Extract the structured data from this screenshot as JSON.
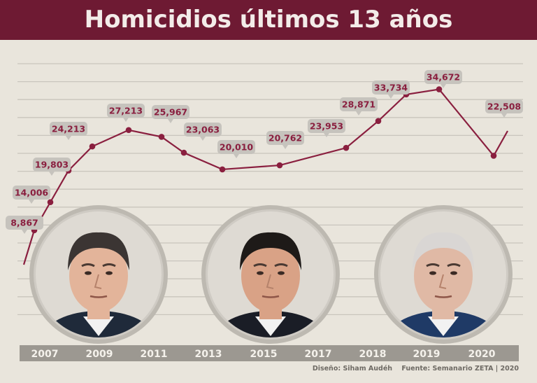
{
  "title": "Homicidios últimos 13 años",
  "credits": {
    "design": "Diseño: Siham Audéh",
    "source": "Fuente: Semanario ZETA |  2020"
  },
  "colors": {
    "title_bg": "#6e1a33",
    "line": "#8a1f3f",
    "label_bg": "#c6c3bd",
    "axis_bar": "#9c9891",
    "background": "#e9e5dc"
  },
  "portraits": [
    {
      "name": "portrait-left"
    },
    {
      "name": "portrait-center"
    },
    {
      "name": "portrait-right"
    }
  ],
  "chart_data": {
    "type": "line",
    "title": "Homicidios últimos 13 años",
    "x_tick_labels": [
      "2007",
      "2009",
      "2011",
      "2013",
      "2015",
      "2017",
      "2018",
      "2019",
      "2020"
    ],
    "points": [
      {
        "label": "8,867",
        "value": 8867
      },
      {
        "label": "14,006",
        "value": 14006
      },
      {
        "label": "19,803",
        "value": 19803
      },
      {
        "label": "24,213",
        "value": 24213
      },
      {
        "label": "27,213",
        "value": 27213
      },
      {
        "label": "25,967",
        "value": 25967
      },
      {
        "label": "23,063",
        "value": 23063
      },
      {
        "label": "20,010",
        "value": 20010
      },
      {
        "label": "20,762",
        "value": 20762
      },
      {
        "label": "23,953",
        "value": 23953
      },
      {
        "label": "28,871",
        "value": 28871
      },
      {
        "label": "33,734",
        "value": 33734
      },
      {
        "label": "34,672",
        "value": 34672
      },
      {
        "label": "22,508",
        "value": 22508
      }
    ],
    "grid": true
  }
}
